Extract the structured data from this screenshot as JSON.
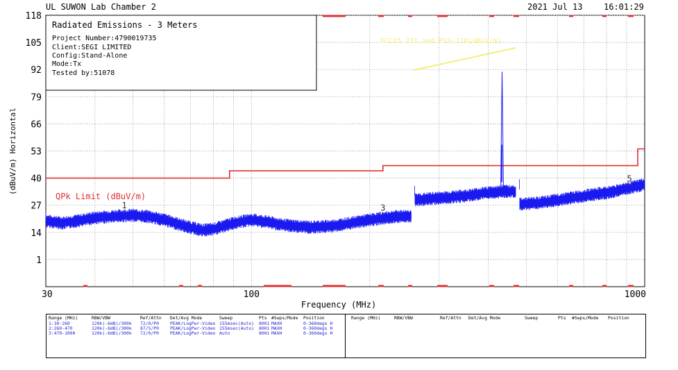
{
  "header": {
    "lab": "UL SUWON Lab Chamber 2",
    "date": "2021 Jul 13",
    "time": "16:01:29"
  },
  "info_box": {
    "title": "Radiated Emissions - 3 Meters",
    "lines": [
      "Project Number:4790019735",
      "Client:SEGI LIMITED",
      "Config:Stand-Alone",
      "Mode:Tx",
      "Tested by:51078"
    ]
  },
  "annotation": {
    "text": "FCC15.231 and RSS-210(dBuV/m)",
    "color": "#f2ef7a"
  },
  "colors": {
    "trace": "#1a1af0",
    "limit": "#e03030",
    "grid": "#9a9a9a",
    "table_text": "#1f1fcf"
  },
  "chart_data": {
    "type": "line",
    "xscale": "log",
    "xlabel": "Frequency (MHz)",
    "ylabel": "(dBuV/m) Horizontal",
    "xlim": [
      30,
      1000
    ],
    "ylim": [
      -12,
      118
    ],
    "x_tick_labels": [
      "30",
      "100",
      "1000"
    ],
    "x_tick_values": [
      30,
      100,
      1000
    ],
    "y_tick_labels": [
      "118",
      "105",
      "92",
      "79",
      "66",
      "53",
      "40",
      "27",
      "14",
      "1"
    ],
    "y_tick_values": [
      118,
      105,
      92,
      79,
      66,
      53,
      40,
      27,
      14,
      1
    ],
    "grid": true,
    "limit": {
      "name": "QPk Limit (dBuV/m)",
      "x": [
        30,
        88,
        88,
        216,
        216,
        960,
        960,
        1000
      ],
      "y": [
        40,
        40,
        43.5,
        43.5,
        46,
        46,
        54,
        54
      ]
    },
    "trace_segments": [
      {
        "x": [
          30,
          33,
          36,
          40,
          45,
          50,
          55,
          60,
          68,
          75,
          80,
          85,
          90,
          100,
          110,
          120,
          140,
          160,
          180,
          200,
          230,
          255
        ],
        "y": [
          19.5,
          18.5,
          19.5,
          21,
          21.8,
          22.2,
          21.5,
          20,
          17,
          15,
          15.5,
          17,
          18.5,
          20,
          19,
          17.5,
          16.5,
          17,
          18.5,
          20,
          21.5,
          22
        ]
      },
      {
        "x": [
          260,
          300,
          350,
          380,
          410,
          430,
          433.5,
          436,
          450,
          470
        ],
        "y": [
          29.5,
          30.5,
          31.5,
          32.5,
          33.2,
          33.5,
          34,
          33.5,
          33.8,
          33.5
        ]
      },
      {
        "x": [
          480,
          520,
          560,
          600,
          650,
          700,
          760,
          800,
          850,
          900,
          950,
          1000
        ],
        "y": [
          27.5,
          28,
          28.5,
          29.5,
          30.5,
          31.5,
          32.5,
          33,
          34,
          35,
          36,
          37
        ]
      }
    ],
    "spike": {
      "x": 433.9,
      "y": 91
    },
    "markers": [
      {
        "label": "1",
        "x": 47.5,
        "y": 22.3
      },
      {
        "label": "3",
        "x": 216,
        "y": 21
      },
      {
        "label": "5",
        "x": 915,
        "y": 35
      }
    ]
  },
  "table": {
    "left_headers": [
      "Range (MHz)",
      "RBW/VBW",
      "Ref/Attn",
      "Det/Avg Mode",
      "Sweep",
      "Pts",
      "#Swps/Mode",
      "Position"
    ],
    "left_rows": [
      [
        "1:30-260",
        "120k(-6dB)/300k",
        "72/0/P0",
        "PEAK/LogPwr-Video",
        "155msec(Auto)",
        "8001",
        "MAXH",
        "0-360degs H"
      ],
      [
        "2:260-470",
        "120k(-6dB)/300k",
        "87/5/P0",
        "PEAK/LogPwr-Video",
        "155msec(Auto)",
        "8001",
        "MAXH",
        "0-360degs H"
      ],
      [
        "3:470-1000",
        "120k(-6dB)/300k",
        "72/0/P0",
        "PEAK/LogPwr-Video",
        "Auto",
        "8001",
        "MAXH",
        "0-360degs H"
      ]
    ],
    "right_headers": [
      "Range (MHz)",
      "RBW/VBW",
      "Ref/Attn",
      "Det/Avg Mode",
      "Sweep",
      "Pts",
      "#Swps/Mode",
      "Position"
    ]
  }
}
